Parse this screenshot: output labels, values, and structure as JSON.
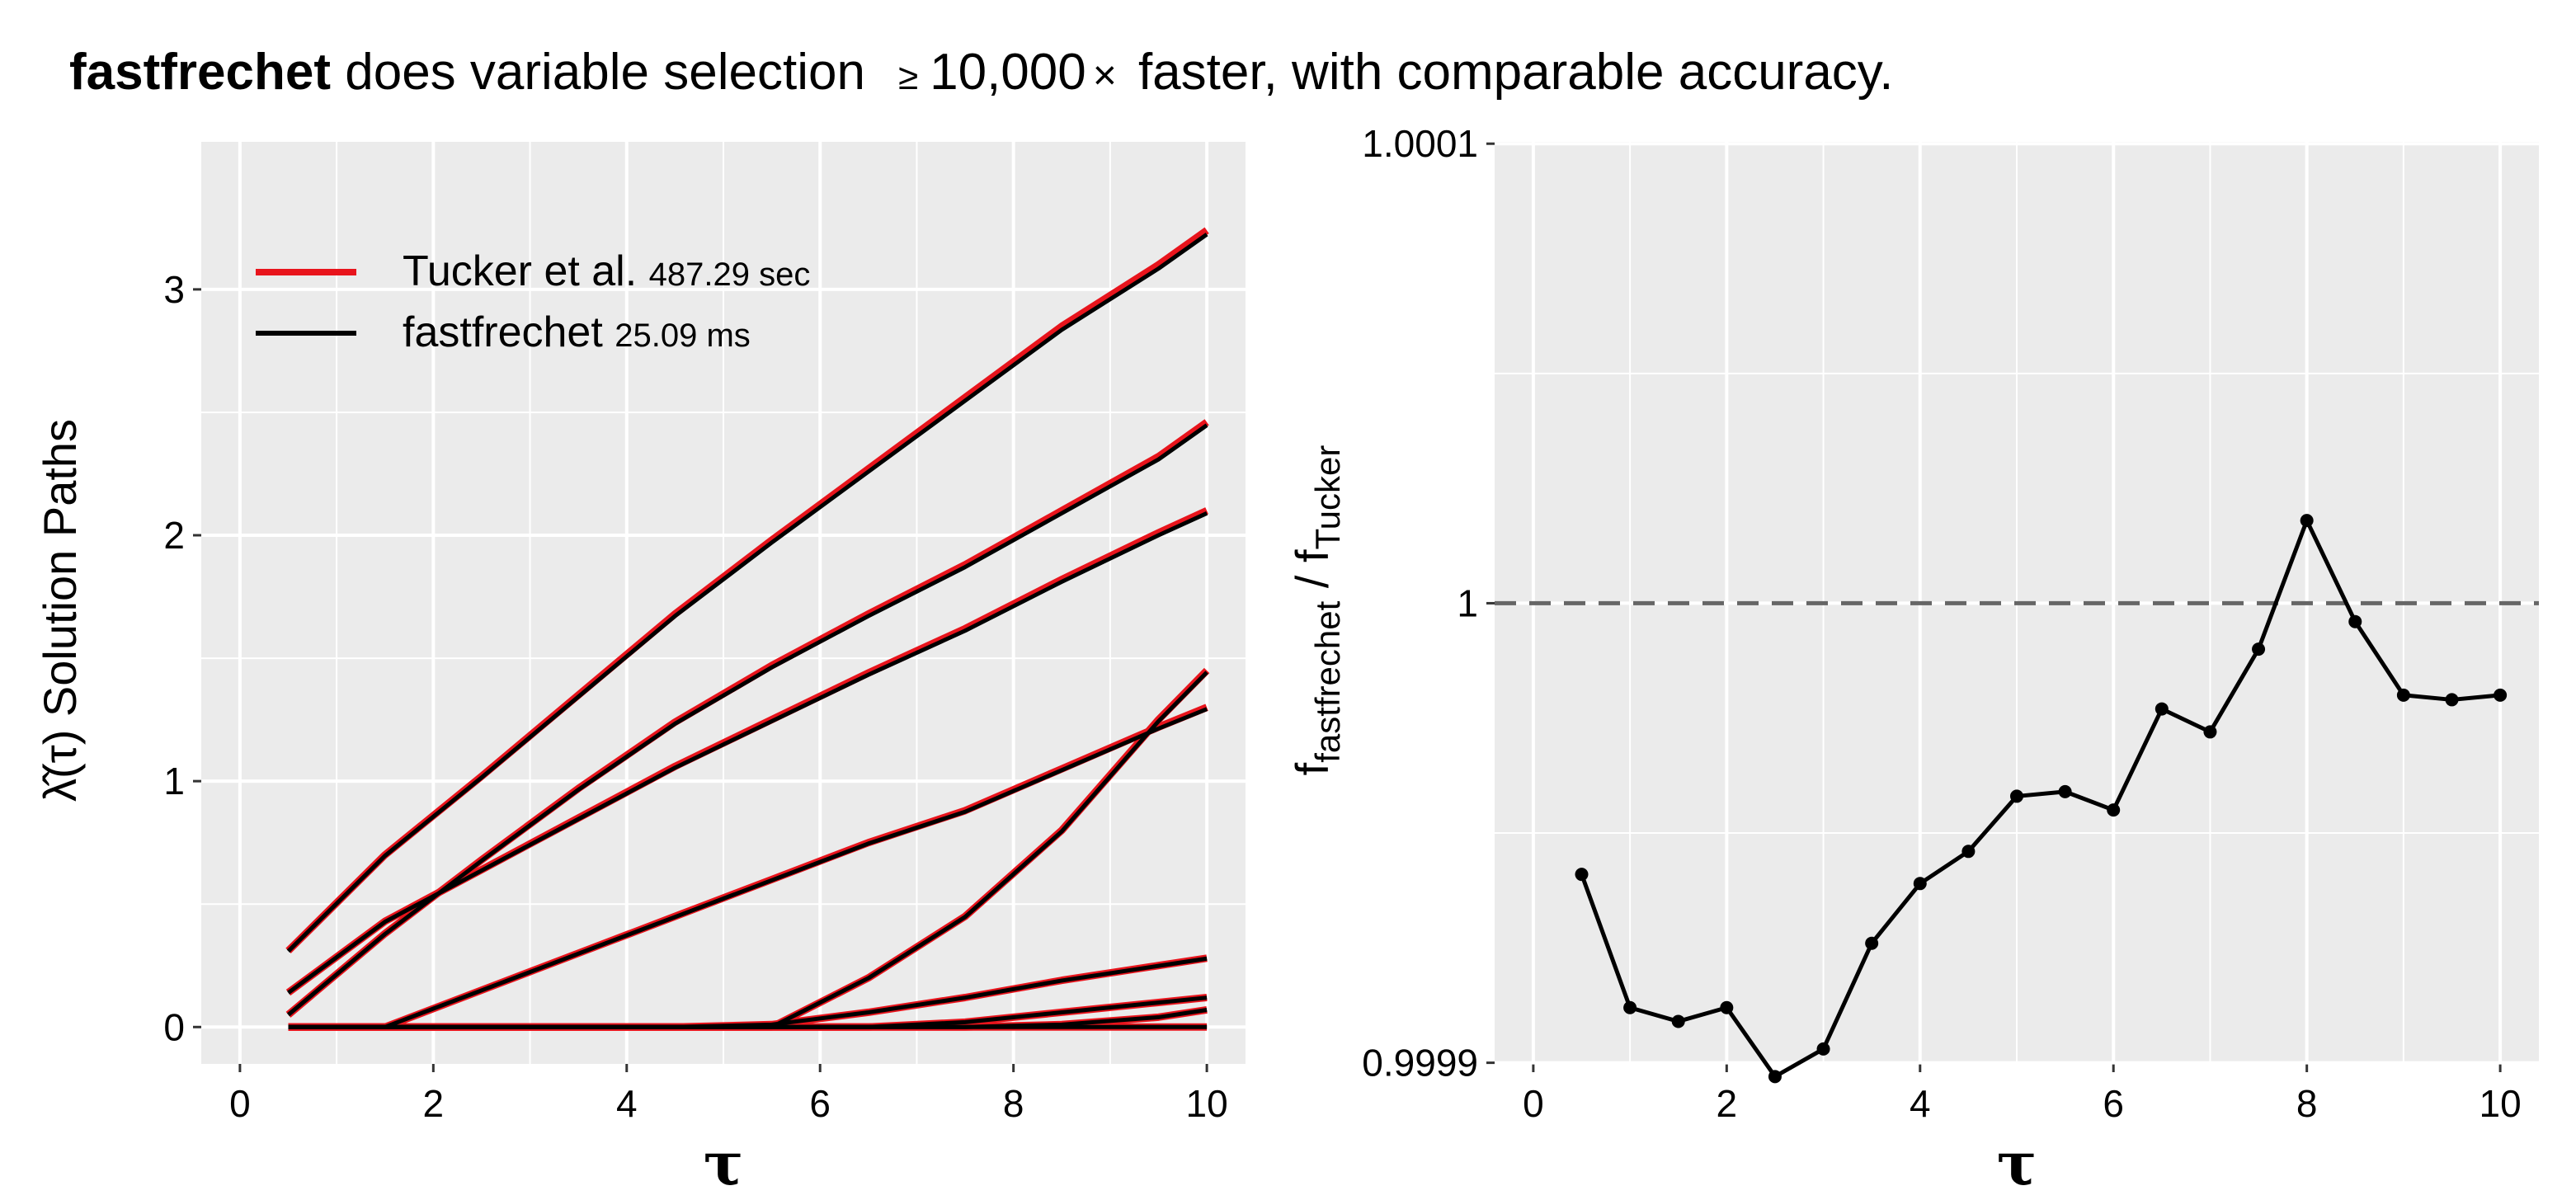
{
  "title": {
    "bold": "fastfrechet",
    "text1": "does variable selection",
    "geq": "≥",
    "factor": "10,000",
    "times": "×",
    "text2": "faster, with comparable accuracy."
  },
  "chart_data": [
    {
      "type": "line",
      "xlabel": "τ",
      "ylabel": "λ̂(τ) Solution Paths",
      "xlim": [
        -0.4,
        10.4
      ],
      "ylim": [
        -0.15,
        3.6
      ],
      "xticks": [
        0,
        2,
        4,
        6,
        8,
        10
      ],
      "yticks": [
        0,
        1,
        2,
        3
      ],
      "grid": true,
      "legend": {
        "position": "top-left",
        "entries": [
          {
            "name": "Tucker et al.",
            "time": "487.29 sec",
            "color": "#e8141c"
          },
          {
            "name": "fastfrechet",
            "time": "25.09 ms",
            "color": "#000000"
          }
        ]
      },
      "x": [
        0.5,
        1.5,
        2.5,
        3.5,
        4.5,
        5.5,
        6.5,
        7.5,
        8.5,
        9.5,
        10
      ],
      "paths": [
        [
          0.31,
          0.7,
          1.02,
          1.35,
          1.68,
          1.98,
          2.27,
          2.56,
          2.85,
          3.1,
          3.24
        ],
        [
          0.14,
          0.43,
          0.64,
          0.85,
          1.06,
          1.25,
          1.44,
          1.62,
          1.82,
          2.01,
          2.1
        ],
        [
          0.05,
          0.38,
          0.68,
          0.97,
          1.24,
          1.47,
          1.68,
          1.88,
          2.1,
          2.32,
          2.46
        ],
        [
          0.0,
          0.0,
          0.15,
          0.3,
          0.45,
          0.6,
          0.75,
          0.88,
          1.05,
          1.22,
          1.3
        ],
        [
          0.0,
          0.0,
          0.0,
          0.0,
          0.0,
          0.0,
          0.2,
          0.45,
          0.8,
          1.25,
          1.45
        ],
        [
          0.0,
          0.0,
          0.0,
          0.0,
          0.0,
          0.0,
          0.0,
          0.02,
          0.06,
          0.1,
          0.12
        ],
        [
          0.0,
          0.0,
          0.0,
          0.0,
          0.0,
          0.01,
          0.06,
          0.12,
          0.19,
          0.25,
          0.28
        ],
        [
          0.0,
          0.0,
          0.0,
          0.0,
          0.0,
          0.0,
          0.0,
          0.0,
          0.01,
          0.04,
          0.07
        ],
        [
          0.0,
          0.0,
          0.0,
          0.0,
          0.0,
          0.0,
          0.0,
          0.0,
          0.0,
          0.0,
          0.0
        ]
      ]
    },
    {
      "type": "line",
      "xlabel": "τ",
      "ylabel": "f_fastfrechet / f_Tucker",
      "ylabel_f": "f",
      "ylabel_sub1": "fastfrechet",
      "ylabel_sep": " / ",
      "ylabel_sub2": "Tucker",
      "xlim": [
        -0.4,
        10.4
      ],
      "ylim": [
        0.99989975,
        1.0001004
      ],
      "xticks": [
        0,
        2,
        4,
        6,
        8,
        10
      ],
      "yticks": [
        0.9999,
        1,
        1.0001
      ],
      "ytick_labels": [
        "0.9999",
        "1",
        "1.0001"
      ],
      "grid": true,
      "reference_line": {
        "y": 1,
        "style": "dashed",
        "color": "#666666"
      },
      "x": [
        0.5,
        1.0,
        1.5,
        2.0,
        2.5,
        3.0,
        3.5,
        4.0,
        4.5,
        5.0,
        5.5,
        6.0,
        6.5,
        7.0,
        7.5,
        8.0,
        8.5,
        9.0,
        9.5,
        10.0
      ],
      "y": [
        0.999941,
        0.999912,
        0.999909,
        0.999912,
        0.999897,
        0.999903,
        0.999926,
        0.999939,
        0.999946,
        0.999958,
        0.999959,
        0.999955,
        0.999977,
        0.999972,
        0.99999,
        1.000018,
        0.999996,
        0.99998,
        0.999979,
        0.99998
      ]
    }
  ]
}
